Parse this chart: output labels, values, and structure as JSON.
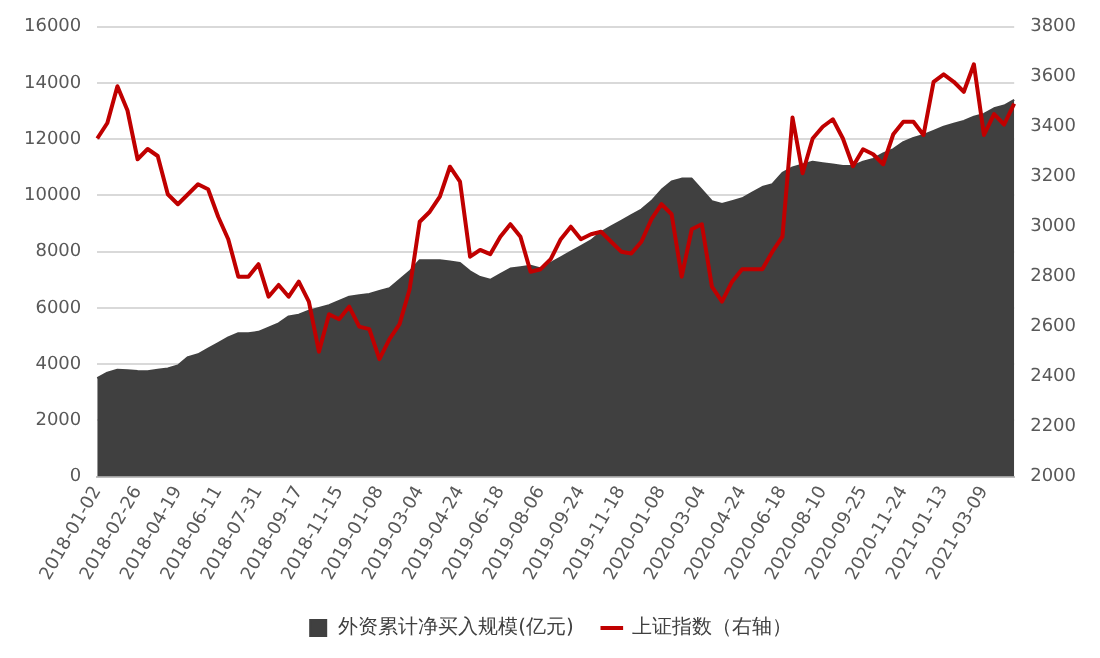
{
  "chart_data": {
    "type": "area",
    "categories": [
      "2018-01-02",
      null,
      null,
      null,
      "2018-02-26",
      null,
      null,
      null,
      "2018-04-19",
      null,
      null,
      null,
      "2018-06-11",
      null,
      null,
      null,
      "2018-07-31",
      null,
      null,
      null,
      "2018-09-17",
      null,
      null,
      null,
      "2018-11-15",
      null,
      null,
      null,
      "2019-01-08",
      null,
      null,
      null,
      "2019-03-04",
      null,
      null,
      null,
      "2019-04-24",
      null,
      null,
      null,
      "2019-06-18",
      null,
      null,
      null,
      "2019-08-06",
      null,
      null,
      null,
      "2019-09-24",
      null,
      null,
      null,
      "2019-11-18",
      null,
      null,
      null,
      "2020-01-08",
      null,
      null,
      null,
      "2020-03-04",
      null,
      null,
      null,
      "2020-04-24",
      null,
      null,
      null,
      "2020-06-18",
      null,
      null,
      null,
      "2020-08-10",
      null,
      null,
      null,
      "2020-09-25",
      null,
      null,
      null,
      "2020-11-24",
      null,
      null,
      null,
      "2021-01-13",
      null,
      null,
      null,
      "2021-03-09",
      null,
      null,
      null
    ],
    "series": [
      {
        "name": "外资累计净买入规模(亿元)",
        "color": "#404040",
        "values": [
          3500,
          3700,
          3800,
          3780,
          3760,
          3750,
          3800,
          3850,
          3950,
          4250,
          4350,
          4550,
          4750,
          4950,
          5100,
          5100,
          5150,
          5300,
          5450,
          5700,
          5760,
          5900,
          6000,
          6100,
          6250,
          6400,
          6450,
          6500,
          6600,
          6700,
          7000,
          7300,
          7700,
          7700,
          7700,
          7650,
          7600,
          7300,
          7100,
          7000,
          7200,
          7400,
          7450,
          7500,
          7400,
          7600,
          7800,
          8000,
          8200,
          8400,
          8700,
          8900,
          9100,
          9300,
          9500,
          9800,
          10200,
          10500,
          10600,
          10600,
          10200,
          9800,
          9700,
          9800,
          9900,
          10100,
          10300,
          10400,
          10800,
          11000,
          11100,
          11200,
          11150,
          11100,
          11050,
          11050,
          11200,
          11300,
          11500,
          11650,
          11900,
          12050,
          12150,
          12300,
          12450,
          12550,
          12650,
          12800,
          12900,
          13100,
          13200,
          13400
        ]
      },
      {
        "name": "上证指数（右轴）",
        "type": "line",
        "axis": "y2",
        "color": "#c00000",
        "values": [
          3353,
          3415,
          3562,
          3465,
          3270,
          3311,
          3283,
          3130,
          3090,
          3130,
          3170,
          3150,
          3040,
          2950,
          2800,
          2800,
          2850,
          2720,
          2767,
          2720,
          2780,
          2700,
          2500,
          2650,
          2630,
          2680,
          2600,
          2590,
          2470,
          2550,
          2610,
          2750,
          3020,
          3060,
          3120,
          3240,
          3180,
          2880,
          2907,
          2890,
          2960,
          3010,
          2960,
          2820,
          2830,
          2870,
          2950,
          3000,
          2950,
          2970,
          2980,
          2940,
          2900,
          2893,
          2940,
          3030,
          3090,
          3050,
          2800,
          2990,
          3010,
          2760,
          2700,
          2780,
          2830,
          2830,
          2830,
          2900,
          2960,
          3437,
          3214,
          3353,
          3400,
          3430,
          3353,
          3242,
          3310,
          3290,
          3250,
          3370,
          3420,
          3420,
          3367,
          3580,
          3610,
          3580,
          3540,
          3650,
          3367,
          3451,
          3409,
          3493
        ]
      }
    ],
    "ylim": [
      0,
      16000
    ],
    "yticks": [
      0,
      2000,
      4000,
      6000,
      8000,
      10000,
      12000,
      14000,
      16000
    ],
    "y2lim": [
      2000,
      3800
    ],
    "y2ticks": [
      2000,
      2200,
      2400,
      2600,
      2800,
      3000,
      3200,
      3400,
      3600,
      3800
    ],
    "grid": "y",
    "legend": "bottom"
  }
}
